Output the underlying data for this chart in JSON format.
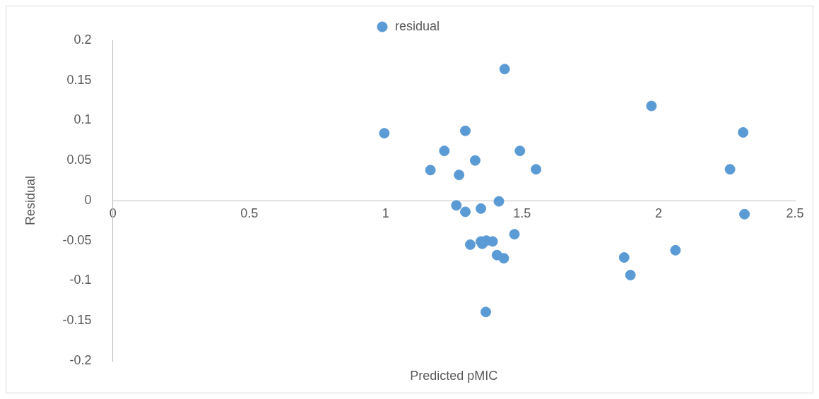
{
  "chart_data": {
    "type": "scatter",
    "xlabel": "Predicted pMIC",
    "ylabel": "Residual",
    "xlim": [
      0,
      2.5
    ],
    "xticks": [
      0,
      0.5,
      1,
      1.5,
      2,
      2.5
    ],
    "ylim": [
      -0.2,
      0.2
    ],
    "yticks": [
      -0.2,
      -0.15,
      -0.1,
      -0.05,
      0,
      0.05,
      0.1,
      0.15,
      0.2
    ],
    "grid": false,
    "legend": "top",
    "marker": "circle",
    "series": [
      {
        "name": "residual",
        "color": "#5b9bd5",
        "x": [
          0.995,
          1.164,
          1.215,
          1.259,
          1.269,
          1.292,
          1.292,
          1.31,
          1.328,
          1.349,
          1.349,
          1.354,
          1.369,
          1.367,
          1.392,
          1.408,
          1.415,
          1.433,
          1.436,
          1.472,
          1.492,
          1.551,
          1.874,
          1.897,
          1.974,
          2.062,
          2.262,
          2.31,
          2.315
        ],
        "values": [
          0.084,
          0.038,
          0.062,
          -0.006,
          0.032,
          0.087,
          -0.014,
          -0.055,
          0.05,
          -0.01,
          -0.051,
          -0.054,
          -0.05,
          -0.139,
          -0.051,
          -0.068,
          -0.001,
          -0.072,
          0.164,
          -0.042,
          0.062,
          0.039,
          -0.071,
          -0.093,
          0.118,
          -0.062,
          0.039,
          0.085,
          -0.017
        ]
      }
    ]
  }
}
